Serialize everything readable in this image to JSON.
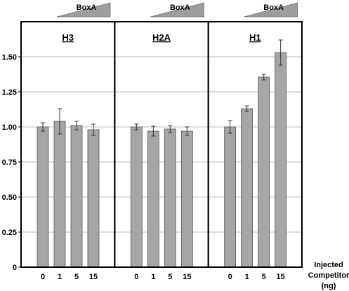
{
  "chart_data": {
    "type": "bar",
    "ylim": [
      0,
      1.75
    ],
    "yticks": [
      "0",
      "0.25",
      "0.50",
      "0.75",
      "1.00",
      "1.25",
      "1.50"
    ],
    "ytick_values": [
      0,
      0.25,
      0.5,
      0.75,
      1.0,
      1.25,
      1.5
    ],
    "grid": true,
    "categories": [
      "0",
      "1",
      "5",
      "15"
    ],
    "xlabel_lines": [
      "Injected",
      "Competitor",
      "(ng)"
    ],
    "wedge_label": "BoxA",
    "bar_color": "#a6a6a6",
    "panels": [
      {
        "name": "H3",
        "values": [
          1.0,
          1.04,
          1.01,
          0.98
        ],
        "errors": [
          0.03,
          0.09,
          0.03,
          0.04
        ]
      },
      {
        "name": "H2A",
        "values": [
          1.0,
          0.97,
          0.985,
          0.97
        ],
        "errors": [
          0.02,
          0.035,
          0.025,
          0.03
        ]
      },
      {
        "name": "H1",
        "values": [
          1.0,
          1.13,
          1.355,
          1.53
        ],
        "errors": [
          0.045,
          0.02,
          0.02,
          0.09
        ]
      }
    ]
  }
}
